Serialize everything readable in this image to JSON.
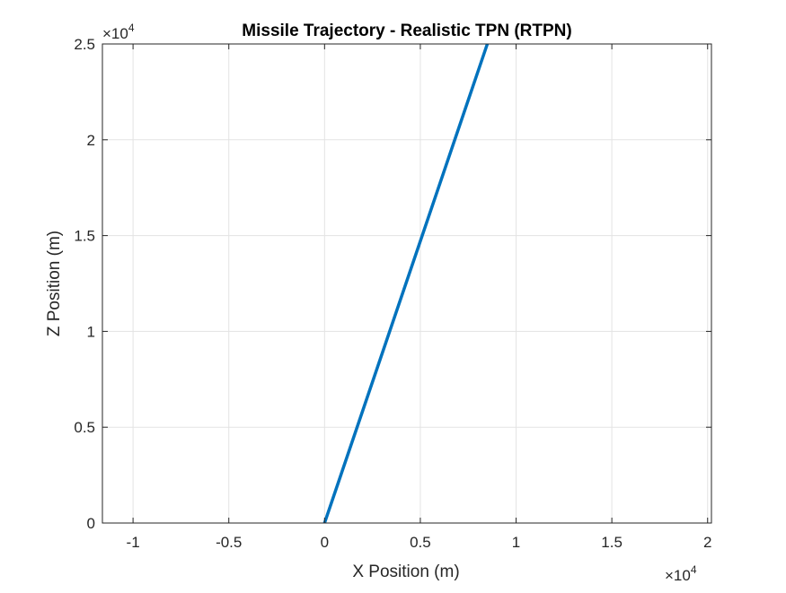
{
  "chart_data": {
    "type": "line",
    "title": "Missile Trajectory - Realistic TPN (RTPN)",
    "xlabel": "X Position (m)",
    "ylabel": "Z Position (m)",
    "x_multiplier": "×10",
    "x_exponent": "4",
    "y_multiplier": "×10",
    "y_exponent": "4",
    "xlim": [
      -11600,
      20200
    ],
    "ylim": [
      0,
      25000
    ],
    "xticks": [
      -10000,
      -5000,
      0,
      5000,
      10000,
      15000,
      20000
    ],
    "xtick_labels": [
      "-1",
      "-0.5",
      "0",
      "0.5",
      "1",
      "1.5",
      "2"
    ],
    "yticks": [
      0,
      5000,
      10000,
      15000,
      20000,
      25000
    ],
    "ytick_labels": [
      "0",
      "0.5",
      "1",
      "1.5",
      "2",
      "2.5"
    ],
    "grid": true,
    "series": [
      {
        "color": "#0072BD",
        "x": [
          0,
          8500
        ],
        "y": [
          0,
          25000
        ]
      }
    ]
  }
}
